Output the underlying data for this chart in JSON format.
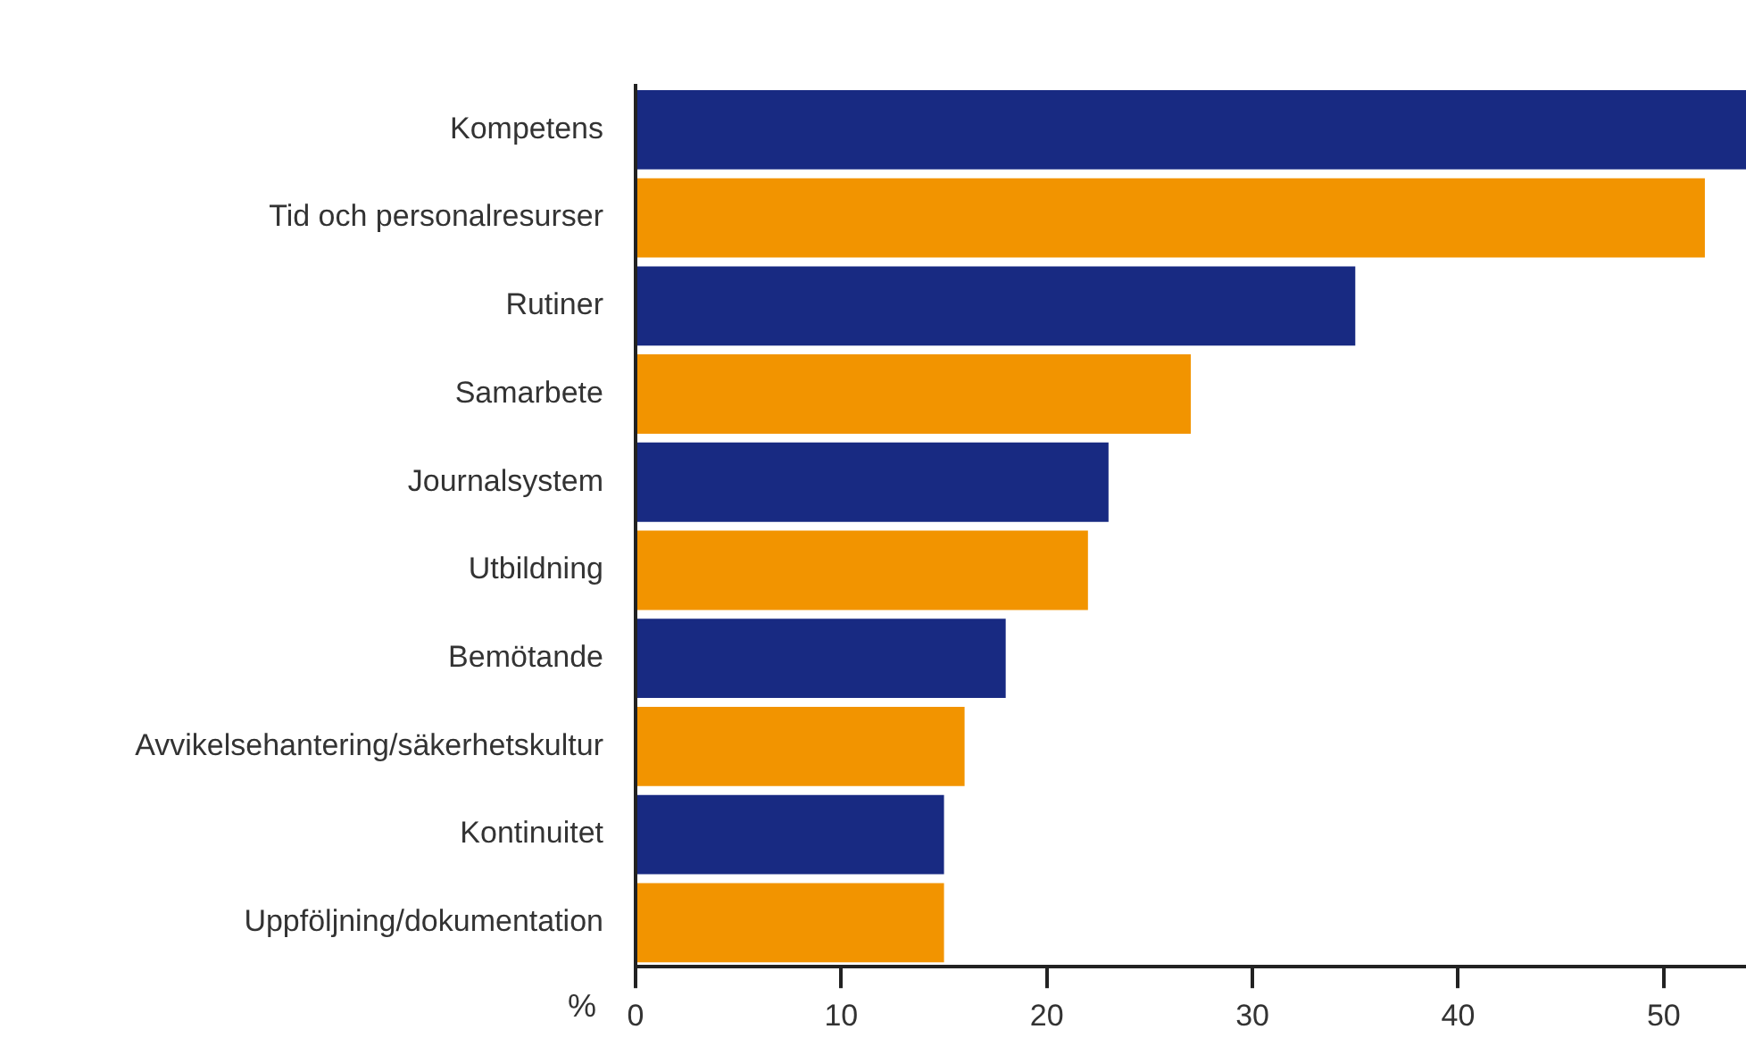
{
  "chart_data": {
    "type": "bar",
    "orientation": "horizontal",
    "xlabel": "%",
    "categories": [
      "Kompetens",
      "Tid och personalresurser",
      "Rutiner",
      "Samarbete",
      "Journalsystem",
      "Utbildning",
      "Bemötande",
      "Avvikelsehantering/säkerhetskultur",
      "Kontinuitet",
      "Uppföljning/dokumentation"
    ],
    "values": [
      54,
      52,
      35,
      27,
      23,
      22,
      18,
      16,
      15,
      15
    ],
    "colors": [
      "#182a82",
      "#f29400",
      "#182a82",
      "#f29400",
      "#182a82",
      "#f29400",
      "#182a82",
      "#f29400",
      "#182a82",
      "#f29400"
    ],
    "xlim": [
      0,
      54
    ],
    "xticks": [
      0,
      10,
      20,
      30,
      40,
      50
    ],
    "grid": false,
    "legend": false
  }
}
